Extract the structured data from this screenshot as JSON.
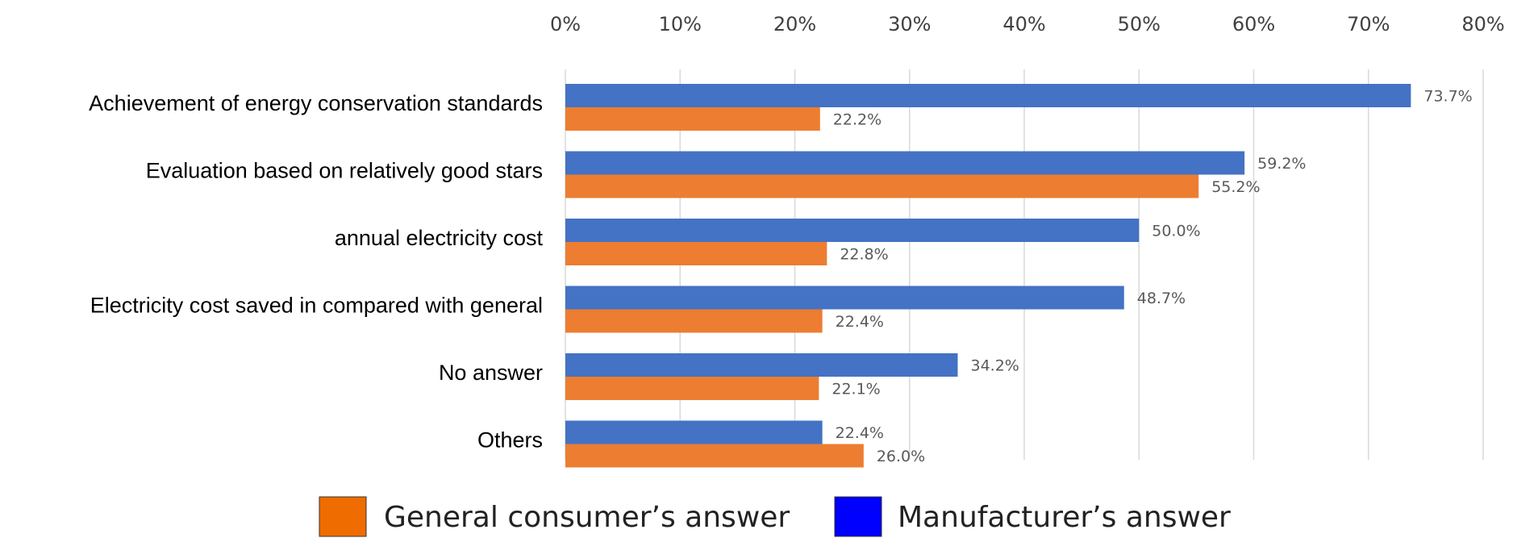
{
  "chart_data": {
    "type": "bar",
    "orientation": "horizontal",
    "title": "",
    "xlabel": "",
    "ylabel": "",
    "xlim": [
      0,
      80
    ],
    "x_axis_position": "top",
    "grid": true,
    "legend_position": "bottom",
    "x_ticks": [
      "0%",
      "10%",
      "20%",
      "30%",
      "40%",
      "50%",
      "60%",
      "70%",
      "80%"
    ],
    "x_tick_values": [
      0,
      10,
      20,
      30,
      40,
      50,
      60,
      70,
      80
    ],
    "categories": [
      "Achievement  of energy conservation standards",
      "Evaluation based on relatively good stars",
      "annual electricity cost",
      "Electricity cost saved in compared with general",
      "No answer",
      "Others"
    ],
    "series": [
      {
        "name": "Manufacturer’s answer",
        "color": "#4472c4",
        "values": [
          73.7,
          59.2,
          50.0,
          48.7,
          34.2,
          22.4
        ],
        "labels": [
          "73.7%",
          "59.2%",
          "50.0%",
          "48.7%",
          "34.2%",
          "22.4%"
        ]
      },
      {
        "name": "General consumer’s answer",
        "color": "#ed7d31",
        "values": [
          22.2,
          55.2,
          22.8,
          22.4,
          22.1,
          26.0
        ],
        "labels": [
          "22.2%",
          "55.2%",
          "22.8%",
          "22.4%",
          "22.1%",
          "26.0%"
        ]
      }
    ],
    "legend": [
      {
        "label": "General consumer’s answer",
        "color": "#ef6c00"
      },
      {
        "label": "Manufacturer’s answer",
        "color": "#0000ff"
      }
    ]
  }
}
